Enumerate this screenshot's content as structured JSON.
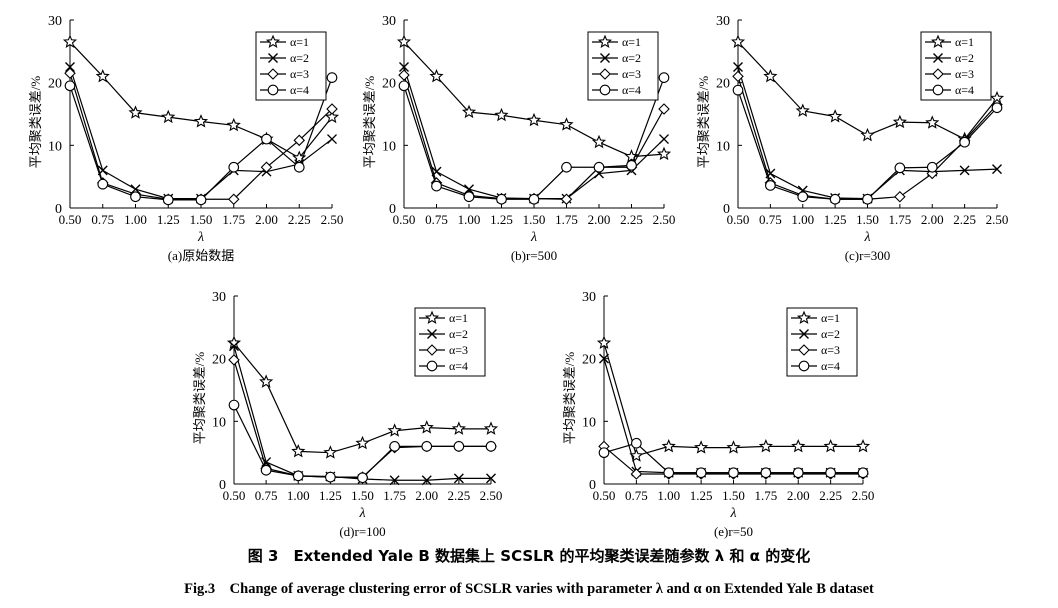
{
  "figure": {
    "caption_cn": "图 3　Extended Yale B 数据集上 SCSLR 的平均聚类误差随参数 λ 和 α 的变化",
    "caption_en": "Fig.3　Change of average clustering error of SCSLR varies with parameter λ and α on Extended Yale B dataset"
  },
  "chart_data": [
    {
      "type": "line",
      "subtitle": "(a)原始数据",
      "xlabel": "λ",
      "ylabel": "平均聚类误差/%",
      "x": [
        0.5,
        0.75,
        1.0,
        1.25,
        1.5,
        1.75,
        2.0,
        2.25,
        2.5
      ],
      "x_tick_labels": [
        "0.50",
        "0.75",
        "1.00",
        "1.25",
        "1.50",
        "1.75",
        "2.00",
        "2.25",
        "2.50"
      ],
      "ylim": [
        0,
        30
      ],
      "y_ticks": [
        0,
        10,
        20,
        30
      ],
      "legend_position": "top-right",
      "series": [
        {
          "name": "α=1",
          "marker": "star",
          "values": [
            26.5,
            21,
            15.2,
            14.5,
            13.8,
            13.2,
            11,
            8,
            14.5
          ]
        },
        {
          "name": "α=2",
          "marker": "x",
          "values": [
            22.5,
            6,
            3,
            1.5,
            1.5,
            6,
            5.8,
            7,
            11
          ]
        },
        {
          "name": "α=3",
          "marker": "diamond",
          "values": [
            21.5,
            4,
            2.2,
            1.4,
            1.4,
            1.4,
            6.5,
            10.8,
            15.8
          ]
        },
        {
          "name": "α=4",
          "marker": "circle",
          "values": [
            19.5,
            3.8,
            1.8,
            1.3,
            1.3,
            6.5,
            11,
            6.5,
            20.8
          ]
        }
      ]
    },
    {
      "type": "line",
      "subtitle": "(b)r=500",
      "xlabel": "λ",
      "ylabel": "平均聚类误差/%",
      "x": [
        0.5,
        0.75,
        1.0,
        1.25,
        1.5,
        1.75,
        2.0,
        2.25,
        2.5
      ],
      "x_tick_labels": [
        "0.50",
        "0.75",
        "1.00",
        "1.25",
        "1.50",
        "1.75",
        "2.00",
        "2.25",
        "2.50"
      ],
      "ylim": [
        0,
        30
      ],
      "y_ticks": [
        0,
        10,
        20,
        30
      ],
      "legend_position": "top-right",
      "series": [
        {
          "name": "α=1",
          "marker": "star",
          "values": [
            26.5,
            21,
            15.3,
            14.8,
            14,
            13.3,
            10.5,
            8.2,
            8.6
          ]
        },
        {
          "name": "α=2",
          "marker": "x",
          "values": [
            22.5,
            5.8,
            3,
            1.6,
            1.5,
            1.5,
            5.5,
            6,
            11
          ]
        },
        {
          "name": "α=3",
          "marker": "diamond",
          "values": [
            21.2,
            4,
            2,
            1.5,
            1.5,
            1.4,
            6.5,
            6.5,
            15.8
          ]
        },
        {
          "name": "α=4",
          "marker": "circle",
          "values": [
            19.5,
            3.5,
            1.8,
            1.4,
            1.4,
            6.5,
            6.5,
            6.8,
            20.8
          ]
        }
      ]
    },
    {
      "type": "line",
      "subtitle": "(c)r=300",
      "xlabel": "λ",
      "ylabel": "平均聚类误差/%",
      "x": [
        0.5,
        0.75,
        1.0,
        1.25,
        1.5,
        1.75,
        2.0,
        2.25,
        2.5
      ],
      "x_tick_labels": [
        "0.50",
        "0.75",
        "1.00",
        "1.25",
        "1.50",
        "1.75",
        "2.00",
        "2.25",
        "2.50"
      ],
      "ylim": [
        0,
        30
      ],
      "y_ticks": [
        0,
        10,
        20,
        30
      ],
      "legend_position": "top-right",
      "series": [
        {
          "name": "α=1",
          "marker": "star",
          "values": [
            26.5,
            21,
            15.5,
            14.6,
            11.6,
            13.7,
            13.6,
            11,
            17.5
          ]
        },
        {
          "name": "α=2",
          "marker": "x",
          "values": [
            22.5,
            5.5,
            2.8,
            1.6,
            1.5,
            6,
            5.8,
            6,
            6.2
          ]
        },
        {
          "name": "α=3",
          "marker": "diamond",
          "values": [
            21,
            4,
            2,
            1.4,
            1.4,
            1.8,
            5.5,
            10.8,
            16.5
          ]
        },
        {
          "name": "α=4",
          "marker": "circle",
          "values": [
            18.8,
            3.6,
            1.8,
            1.4,
            1.4,
            6.4,
            6.5,
            10.5,
            16
          ]
        }
      ]
    },
    {
      "type": "line",
      "subtitle": "(d)r=100",
      "xlabel": "λ",
      "ylabel": "平均聚类误差/%",
      "x": [
        0.5,
        0.75,
        1.0,
        1.25,
        1.5,
        1.75,
        2.0,
        2.25,
        2.5
      ],
      "x_tick_labels": [
        "0.50",
        "0.75",
        "1.00",
        "1.25",
        "1.50",
        "1.75",
        "2.00",
        "2.25",
        "2.50"
      ],
      "ylim": [
        0,
        30
      ],
      "y_ticks": [
        0,
        10,
        20,
        30
      ],
      "legend_position": "top-right",
      "series": [
        {
          "name": "α=1",
          "marker": "star",
          "values": [
            22.5,
            16.3,
            5.2,
            5,
            6.5,
            8.5,
            9,
            8.8,
            8.8
          ]
        },
        {
          "name": "α=2",
          "marker": "x",
          "values": [
            22,
            3.5,
            1.3,
            1.2,
            0.8,
            0.6,
            0.6,
            0.9,
            0.9
          ]
        },
        {
          "name": "α=3",
          "marker": "diamond",
          "values": [
            19.8,
            2.5,
            1.3,
            1.1,
            1.1,
            5.8,
            6,
            6,
            6
          ]
        },
        {
          "name": "α=4",
          "marker": "circle",
          "values": [
            12.6,
            2.2,
            1.3,
            1.1,
            1,
            6,
            6,
            6,
            6
          ]
        }
      ]
    },
    {
      "type": "line",
      "subtitle": "(e)r=50",
      "xlabel": "λ",
      "ylabel": "平均聚类误差/%",
      "x": [
        0.5,
        0.75,
        1.0,
        1.25,
        1.5,
        1.75,
        2.0,
        2.25,
        2.5
      ],
      "x_tick_labels": [
        "0.50",
        "0.75",
        "1.00",
        "1.25",
        "1.50",
        "1.75",
        "2.00",
        "2.25",
        "2.50"
      ],
      "ylim": [
        0,
        30
      ],
      "y_ticks": [
        0,
        10,
        20,
        30
      ],
      "legend_position": "top-right",
      "series": [
        {
          "name": "α=1",
          "marker": "star",
          "values": [
            22.5,
            4.5,
            6,
            5.8,
            5.8,
            6,
            6,
            6,
            6
          ]
        },
        {
          "name": "α=2",
          "marker": "x",
          "values": [
            20,
            2,
            1.8,
            1.8,
            1.8,
            1.8,
            1.8,
            1.8,
            1.8
          ]
        },
        {
          "name": "α=3",
          "marker": "diamond",
          "values": [
            6,
            1.6,
            1.6,
            1.6,
            1.6,
            1.6,
            1.6,
            1.6,
            1.6
          ]
        },
        {
          "name": "α=4",
          "marker": "circle",
          "values": [
            5,
            6.5,
            1.8,
            1.8,
            1.8,
            1.8,
            1.8,
            1.8,
            1.8
          ]
        }
      ]
    }
  ]
}
